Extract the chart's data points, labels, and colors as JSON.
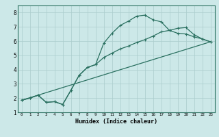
{
  "title": "",
  "xlabel": "Humidex (Indice chaleur)",
  "xlim": [
    -0.5,
    23.5
  ],
  "ylim": [
    1,
    8.5
  ],
  "xticks": [
    0,
    1,
    2,
    3,
    4,
    5,
    6,
    7,
    8,
    9,
    10,
    11,
    12,
    13,
    14,
    15,
    16,
    17,
    18,
    19,
    20,
    21,
    22,
    23
  ],
  "yticks": [
    1,
    2,
    3,
    4,
    5,
    6,
    7,
    8
  ],
  "background_color": "#cce8e8",
  "grid_color": "#aacccc",
  "line_color": "#2a7060",
  "line1_x": [
    0,
    1,
    2,
    3,
    4,
    5,
    6,
    7,
    8,
    9,
    10,
    11,
    12,
    13,
    14,
    15,
    16,
    17,
    18,
    19,
    20,
    21,
    22,
    23
  ],
  "line1_y": [
    1.85,
    2.0,
    2.2,
    1.7,
    1.75,
    1.55,
    2.55,
    3.6,
    4.15,
    4.35,
    5.85,
    6.55,
    7.1,
    7.4,
    7.75,
    7.82,
    7.5,
    7.35,
    6.75,
    6.55,
    6.5,
    6.3,
    6.15,
    5.95
  ],
  "line2_x": [
    0,
    1,
    2,
    3,
    4,
    5,
    6,
    7,
    8,
    9,
    10,
    11,
    12,
    13,
    14,
    15,
    16,
    17,
    18,
    19,
    20,
    21,
    22,
    23
  ],
  "line2_y": [
    1.85,
    2.0,
    2.2,
    1.7,
    1.75,
    1.55,
    2.55,
    3.6,
    4.15,
    4.35,
    4.85,
    5.15,
    5.45,
    5.65,
    5.9,
    6.1,
    6.35,
    6.65,
    6.75,
    6.9,
    6.95,
    6.45,
    6.15,
    5.95
  ],
  "line3_x": [
    0,
    23
  ],
  "line3_y": [
    1.85,
    5.95
  ]
}
